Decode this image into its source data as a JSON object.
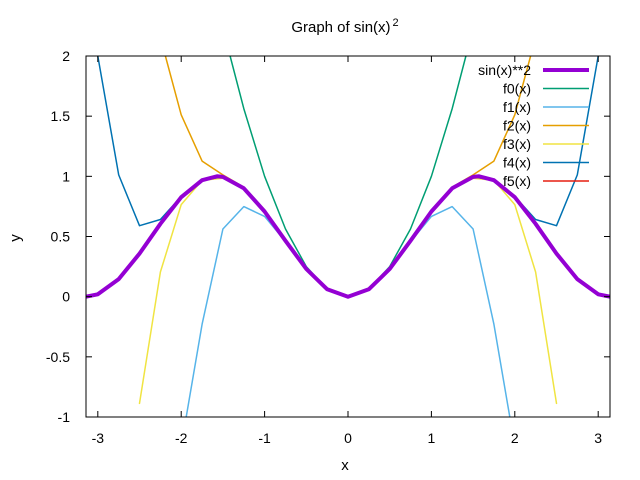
{
  "chart_data": {
    "type": "line",
    "title": "Graph of sin(x)",
    "title_superscript": "2",
    "xlabel": "x",
    "ylabel": "y",
    "xlim": [
      -3.14159,
      3.14159
    ],
    "ylim": [
      -1,
      2
    ],
    "x_ticks": [
      -3,
      -2,
      -1,
      0,
      1,
      2,
      3
    ],
    "x_tick_labels": [
      "-3",
      "-2",
      "-1",
      "0",
      "1",
      "2",
      "3"
    ],
    "y_ticks": [
      -1,
      -0.5,
      0,
      0.5,
      1,
      1.5,
      2
    ],
    "y_tick_labels": [
      "-1",
      "-0.5",
      "0",
      "0.5",
      "1",
      "1.5",
      "2"
    ],
    "grid": false,
    "legend_position": "top-right",
    "series": [
      {
        "name": "sin(x)**2",
        "color": "#9400d3",
        "width": 4,
        "x": [
          -3.1416,
          -3.0,
          -2.75,
          -2.5,
          -2.25,
          -2.0,
          -1.75,
          -1.5708,
          -1.5,
          -1.25,
          -1.0,
          -0.75,
          -0.5,
          -0.25,
          0.0,
          0.25,
          0.5,
          0.75,
          1.0,
          1.25,
          1.5,
          1.5708,
          1.75,
          2.0,
          2.25,
          2.5,
          2.75,
          3.0,
          3.1416
        ],
        "y": [
          0.0,
          0.0199,
          0.1456,
          0.3582,
          0.6059,
          0.8268,
          0.968,
          1.0,
          0.995,
          0.9004,
          0.7081,
          0.4646,
          0.2298,
          0.0612,
          0.0,
          0.0612,
          0.2298,
          0.4646,
          0.7081,
          0.9004,
          0.995,
          1.0,
          0.968,
          0.8268,
          0.6059,
          0.3582,
          0.1456,
          0.0199,
          0.0
        ]
      },
      {
        "name": "f0(x)",
        "color": "#009e73",
        "width": 1.5,
        "x": [
          -1.414,
          -1.25,
          -1.0,
          -0.75,
          -0.5,
          -0.25,
          0.0,
          0.25,
          0.5,
          0.75,
          1.0,
          1.25,
          1.414
        ],
        "y": [
          2.0,
          1.5625,
          1.0,
          0.5625,
          0.25,
          0.0625,
          0.0,
          0.0625,
          0.25,
          0.5625,
          1.0,
          1.5625,
          2.0
        ]
      },
      {
        "name": "f1(x)",
        "color": "#56b4e9",
        "width": 1.5,
        "x": [
          -1.94,
          -1.75,
          -1.5,
          -1.25,
          -1.0,
          -0.75,
          -0.5,
          -0.25,
          0.0,
          0.25,
          0.5,
          0.75,
          1.0,
          1.25,
          1.5,
          1.75,
          1.94
        ],
        "y": [
          -1.0,
          -0.2285,
          0.5625,
          0.7487,
          0.6667,
          0.457,
          0.2292,
          0.0612,
          0.0,
          0.0612,
          0.2292,
          0.457,
          0.6667,
          0.7487,
          0.5625,
          -0.2285,
          -1.0
        ]
      },
      {
        "name": "f2(x)",
        "color": "#e69f00",
        "width": 1.5,
        "x": [
          -2.19,
          -2.0,
          -1.75,
          -1.5,
          -1.25,
          -1.0,
          -0.75,
          -0.5,
          -0.25,
          0.0,
          0.25,
          0.5,
          0.75,
          1.0,
          1.25,
          1.5,
          1.75,
          2.0,
          2.19
        ],
        "y": [
          2.0,
          1.5111,
          1.1268,
          1.0118,
          0.91,
          0.7111,
          0.465,
          0.2298,
          0.0612,
          0.0,
          0.0612,
          0.2298,
          0.465,
          0.7111,
          0.91,
          1.0118,
          1.1268,
          1.5111,
          2.0
        ]
      },
      {
        "name": "f3(x)",
        "color": "#f0e442",
        "width": 1.5,
        "x": [
          -2.5,
          -2.25,
          -2.0,
          -1.75,
          -1.5,
          -1.25,
          -1.0,
          -0.75,
          -0.5,
          -0.25,
          0.0,
          0.25,
          0.5,
          0.75,
          1.0,
          1.25,
          1.5,
          1.75,
          2.0,
          2.25,
          2.5
        ],
        "y": [
          -0.8869,
          0.2051,
          0.7651,
          0.9671,
          0.9841,
          0.8995,
          0.7079,
          0.4646,
          0.2298,
          0.0612,
          0.0,
          0.0612,
          0.2298,
          0.4646,
          0.7079,
          0.8995,
          0.9841,
          0.9671,
          0.7651,
          0.2051,
          -0.8869
        ]
      },
      {
        "name": "f4(x)",
        "color": "#0072b2",
        "width": 1.5,
        "x": [
          -3.0,
          -2.75,
          -2.5,
          -2.25,
          -2.0,
          -1.75,
          -1.5,
          -1.25,
          -1.0,
          -0.75,
          -0.5,
          -0.25,
          0.0,
          0.25,
          0.5,
          0.75,
          1.0,
          1.25,
          1.5,
          1.75,
          2.0,
          2.25,
          2.5,
          2.75,
          3.0
        ],
        "y": [
          2.0,
          1.0115,
          0.5897,
          0.6412,
          0.8328,
          0.9688,
          0.9954,
          0.9006,
          0.7081,
          0.4646,
          0.2298,
          0.0612,
          0.0,
          0.0612,
          0.2298,
          0.4646,
          0.7081,
          0.9006,
          0.9954,
          0.9688,
          0.8328,
          0.6412,
          0.5897,
          1.0115,
          2.0
        ]
      },
      {
        "name": "f5(x)",
        "color": "#e51e10",
        "width": 1.5,
        "x": [
          -3.1416,
          -3.0,
          -2.75,
          -2.5,
          -2.25,
          -2.0,
          -1.75,
          -1.5,
          -1.25,
          -1.0,
          -0.75,
          -0.5,
          -0.25,
          0.0,
          0.25,
          0.5,
          0.75,
          1.0,
          1.25,
          1.5,
          1.75,
          2.0,
          2.25,
          2.5,
          2.75,
          3.0,
          3.1416
        ],
        "y": [
          -0.7328,
          -0.3659,
          0.0795,
          0.342,
          0.5958,
          0.8243,
          0.9675,
          0.995,
          0.9004,
          0.7081,
          0.4646,
          0.2298,
          0.0612,
          0.0,
          0.0612,
          0.2298,
          0.4646,
          0.7081,
          0.9004,
          0.995,
          0.9675,
          0.8243,
          0.5958,
          0.342,
          0.0795,
          -0.3659,
          -0.7328
        ]
      }
    ]
  }
}
